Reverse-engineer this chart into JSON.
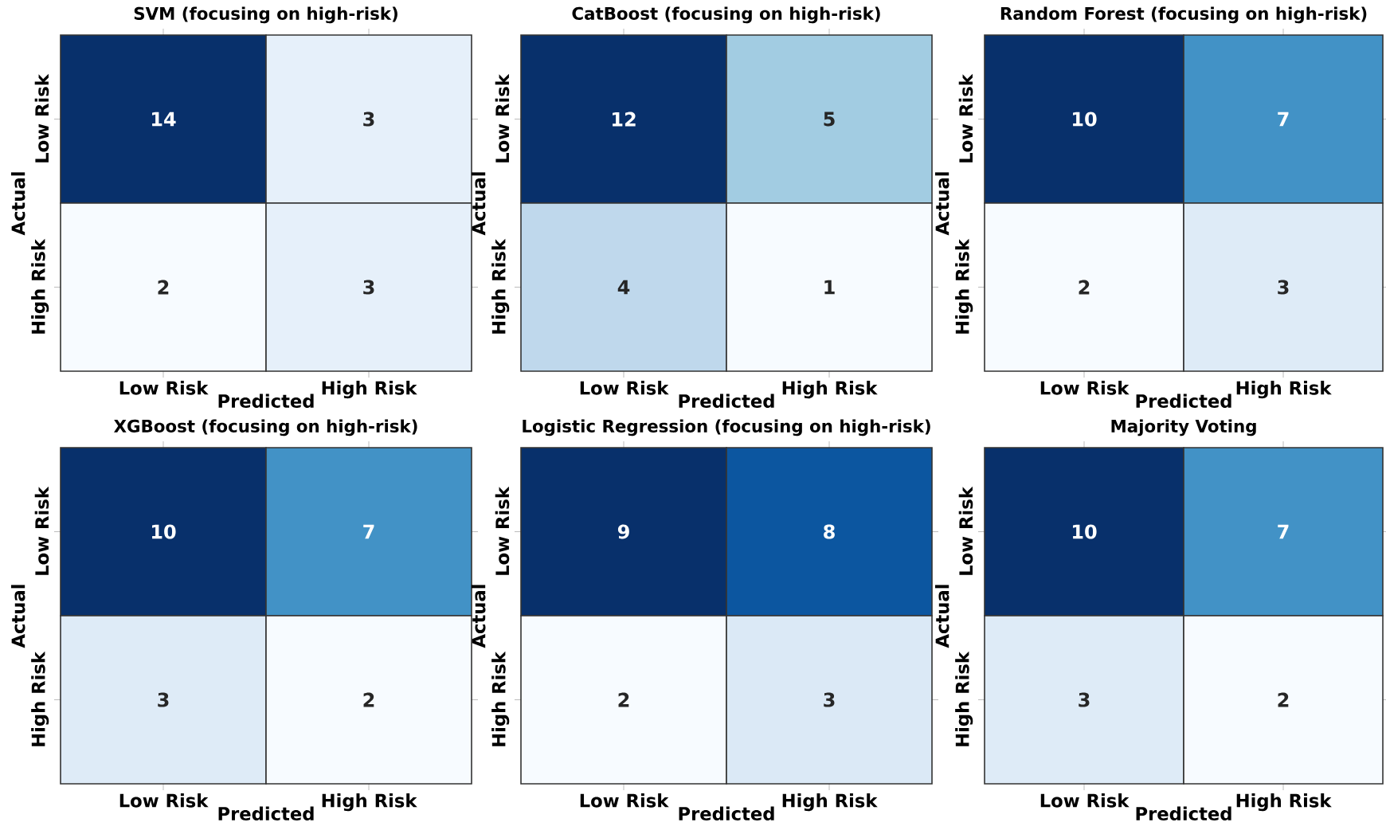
{
  "chart_data": [
    {
      "type": "heatmap",
      "title": "SVM (focusing on high-risk)",
      "xlabel": "Predicted",
      "ylabel": "Actual",
      "categories": [
        "Low Risk",
        "High Risk"
      ],
      "y_categories": [
        "Low Risk",
        "High Risk"
      ],
      "cells": [
        [
          14,
          3
        ],
        [
          2,
          3
        ]
      ],
      "data_labels": true
    },
    {
      "type": "heatmap",
      "title": "CatBoost (focusing on high-risk)",
      "xlabel": "Predicted",
      "ylabel": "Actual",
      "categories": [
        "Low Risk",
        "High Risk"
      ],
      "y_categories": [
        "Low Risk",
        "High Risk"
      ],
      "cells": [
        [
          12,
          5
        ],
        [
          4,
          1
        ]
      ],
      "data_labels": true
    },
    {
      "type": "heatmap",
      "title": "Random Forest (focusing on high-risk)",
      "xlabel": "Predicted",
      "ylabel": "Actual",
      "categories": [
        "Low Risk",
        "High Risk"
      ],
      "y_categories": [
        "Low Risk",
        "High Risk"
      ],
      "cells": [
        [
          10,
          7
        ],
        [
          2,
          3
        ]
      ],
      "data_labels": true
    },
    {
      "type": "heatmap",
      "title": "XGBoost (focusing on high-risk)",
      "xlabel": "Predicted",
      "ylabel": "Actual",
      "categories": [
        "Low Risk",
        "High Risk"
      ],
      "y_categories": [
        "Low Risk",
        "High Risk"
      ],
      "cells": [
        [
          10,
          7
        ],
        [
          3,
          2
        ]
      ],
      "data_labels": true
    },
    {
      "type": "heatmap",
      "title": "Logistic Regression (focusing on high-risk)",
      "xlabel": "Predicted",
      "ylabel": "Actual",
      "categories": [
        "Low Risk",
        "High Risk"
      ],
      "y_categories": [
        "Low Risk",
        "High Risk"
      ],
      "cells": [
        [
          9,
          8
        ],
        [
          2,
          3
        ]
      ],
      "data_labels": true
    },
    {
      "type": "heatmap",
      "title": "Majority Voting",
      "xlabel": "Predicted",
      "ylabel": "Actual",
      "categories": [
        "Low Risk",
        "High Risk"
      ],
      "y_categories": [
        "Low Risk",
        "High Risk"
      ],
      "cells": [
        [
          10,
          7
        ],
        [
          3,
          2
        ]
      ],
      "data_labels": true
    }
  ]
}
